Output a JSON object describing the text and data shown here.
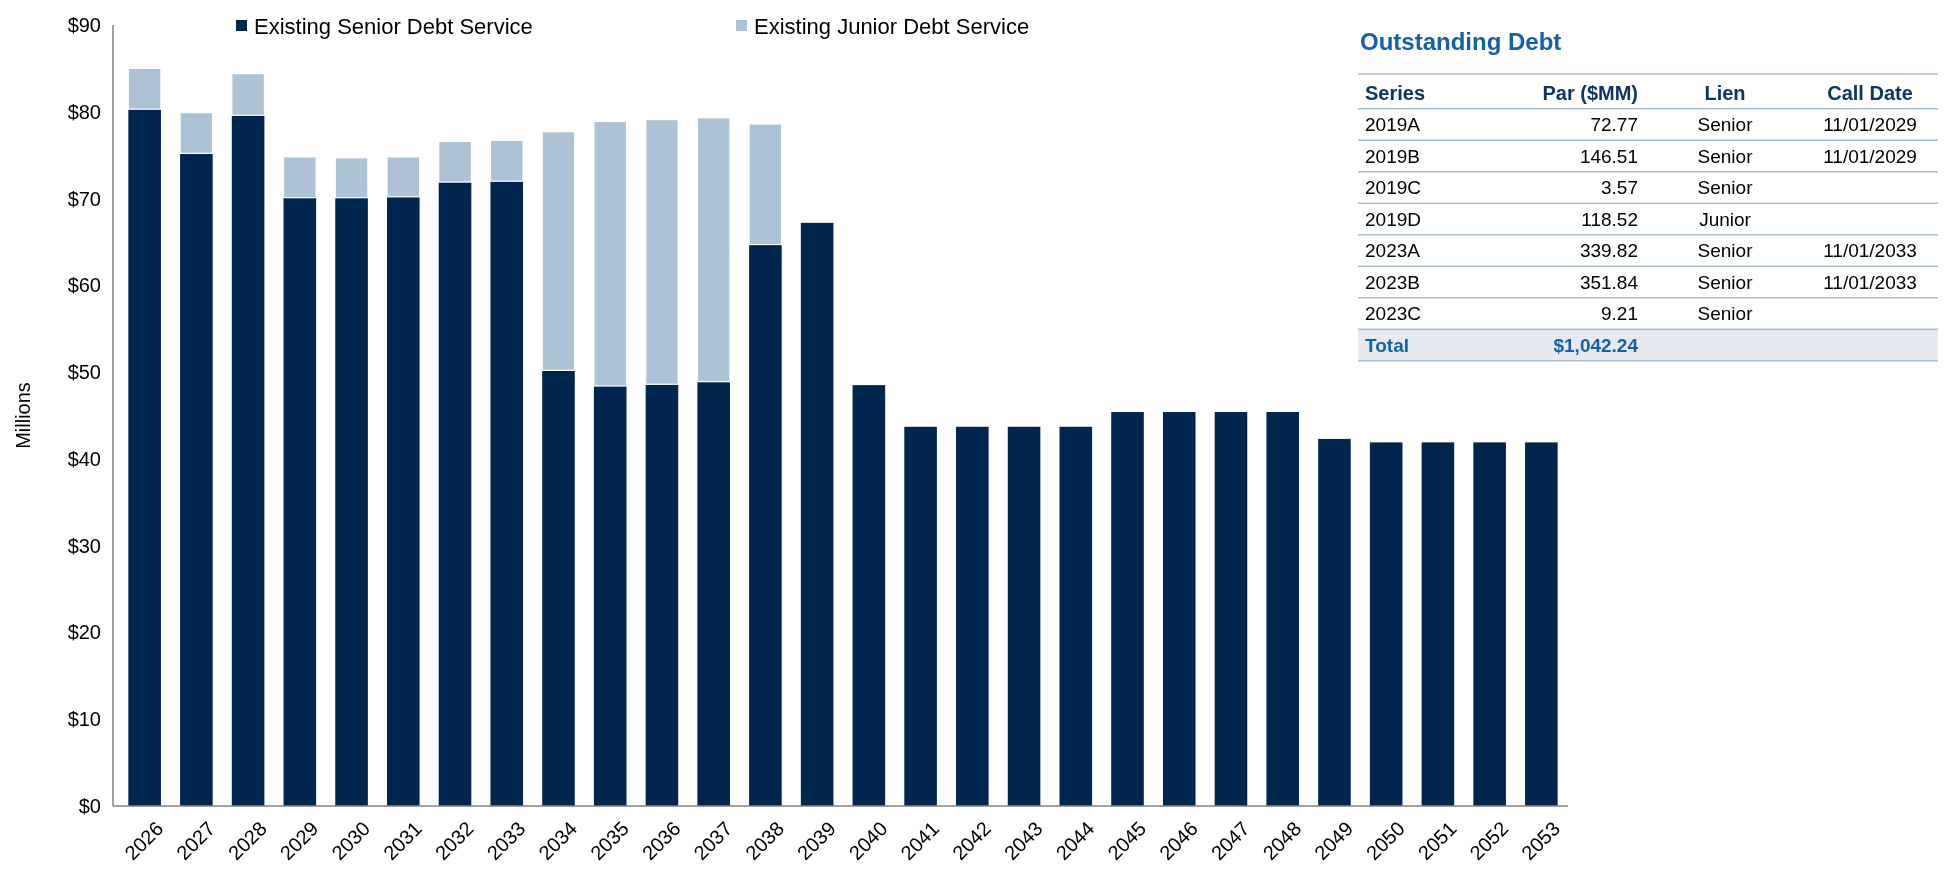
{
  "chart_data": [
    {
      "type": "bar",
      "ylabel": "Millions",
      "stacked": true,
      "legend": "top",
      "grid": false,
      "categories": [
        "2026",
        "2027",
        "2028",
        "2029",
        "2030",
        "2031",
        "2032",
        "2033",
        "2034",
        "2035",
        "2036",
        "2037",
        "2038",
        "2039",
        "2040",
        "2041",
        "2042",
        "2043",
        "2044",
        "2045",
        "2046",
        "2047",
        "2048",
        "2049",
        "2050",
        "2051",
        "2052",
        "2053"
      ],
      "series": [
        {
          "name": "Existing Senior Debt Service",
          "color": "#002650",
          "values": [
            80.3,
            75.2,
            79.6,
            70.1,
            70.1,
            70.2,
            71.9,
            72.0,
            50.2,
            48.4,
            48.6,
            48.9,
            64.7,
            67.2,
            48.5,
            43.7,
            43.7,
            43.7,
            43.7,
            45.4,
            45.4,
            45.4,
            45.4,
            42.3,
            41.9,
            41.9,
            41.9,
            41.9
          ]
        },
        {
          "name": "Existing Junior Debt Service",
          "color": "#adc2d4",
          "values": [
            4.7,
            4.7,
            4.8,
            4.7,
            4.6,
            4.6,
            4.7,
            4.7,
            27.5,
            30.5,
            30.5,
            30.4,
            13.9,
            0,
            0,
            0,
            0,
            0,
            0,
            0,
            0,
            0,
            0,
            0,
            0,
            0,
            0,
            0
          ]
        }
      ],
      "ylim": [
        0,
        90
      ],
      "yticks": [
        {
          "value": 0,
          "label": "$0"
        },
        {
          "value": 10,
          "label": "$10"
        },
        {
          "value": 20,
          "label": "$20"
        },
        {
          "value": 30,
          "label": "$30"
        },
        {
          "value": 40,
          "label": "$40"
        },
        {
          "value": 50,
          "label": "$50"
        },
        {
          "value": 60,
          "label": "$60"
        },
        {
          "value": 70,
          "label": "$70"
        },
        {
          "value": 80,
          "label": "$80"
        },
        {
          "value": 90,
          "label": "$90"
        }
      ]
    },
    {
      "type": "other",
      "title": "Outstanding Debt",
      "categories": [
        "Series",
        "Par ($MM)",
        "Lien",
        "Call Date"
      ],
      "cell_labels": [
        [
          "2019A",
          "72.77",
          "Senior",
          "11/01/2029"
        ],
        [
          "2019B",
          "146.51",
          "Senior",
          "11/01/2029"
        ],
        [
          "2019C",
          "3.57",
          "Senior",
          null
        ],
        [
          "2019D",
          "118.52",
          "Junior",
          null
        ],
        [
          "2023A",
          "339.82",
          "Senior",
          "11/01/2033"
        ],
        [
          "2023B",
          "351.84",
          "Senior",
          "11/01/2033"
        ],
        [
          "2023C",
          "9.21",
          "Senior",
          null
        ],
        [
          "Total",
          "$1,042.24",
          null,
          null
        ]
      ]
    }
  ]
}
